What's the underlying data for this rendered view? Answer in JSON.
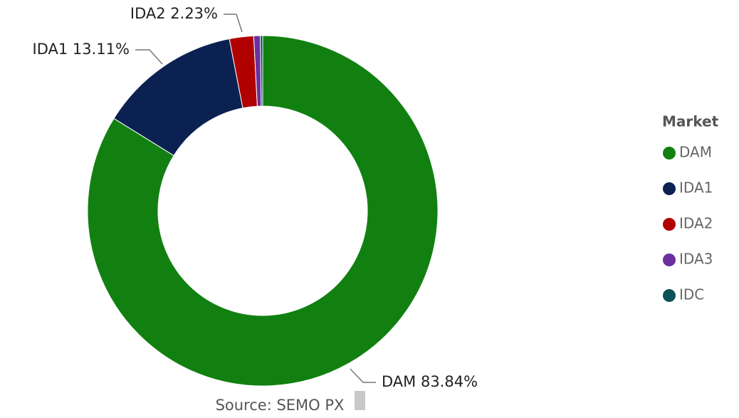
{
  "chart_data": {
    "type": "donut",
    "categories": [
      "DAM",
      "IDA1",
      "IDA2",
      "IDA3",
      "IDC"
    ],
    "values": [
      83.84,
      13.11,
      2.23,
      0.6,
      0.22
    ],
    "value_labels": [
      "DAM 83.84%",
      "IDA1 13.11%",
      "IDA2 2.23%",
      null,
      null
    ],
    "colors": [
      "#118011",
      "#0a2152",
      "#b00000",
      "#6b2fa0",
      "#0d5257"
    ],
    "legend_title": "Market",
    "legend": "right",
    "source": "Source: SEMO PX"
  }
}
